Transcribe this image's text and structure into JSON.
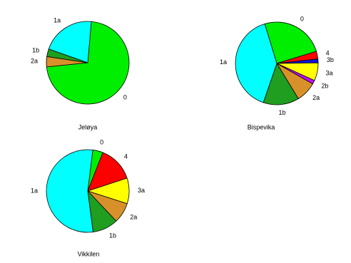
{
  "chart_data": [
    {
      "type": "pie",
      "title": "Jeløya",
      "categories": [
        "0",
        "2a",
        "1b",
        "1a"
      ],
      "values": [
        72,
        4,
        3,
        21
      ],
      "colors": [
        "#00ee00",
        "#d8912a",
        "#1f9e1f",
        "#00ffff"
      ]
    },
    {
      "type": "pie",
      "title": "Bispevika",
      "categories": [
        "0",
        "4",
        "3b",
        "3a",
        "2b",
        "2a",
        "1b",
        "1a"
      ],
      "values": [
        25,
        3,
        1.5,
        7,
        1.5,
        8,
        14,
        40
      ],
      "colors": [
        "#00ee00",
        "#ff0000",
        "#1010e0",
        "#ffff00",
        "#c010ff",
        "#d8912a",
        "#1f9e1f",
        "#00ffff"
      ]
    },
    {
      "type": "pie",
      "title": "Vikkilen",
      "categories": [
        "0",
        "4",
        "3a",
        "2a",
        "1b",
        "1a"
      ],
      "values": [
        4,
        14,
        10,
        8,
        10,
        54
      ],
      "colors": [
        "#00ee00",
        "#ff0000",
        "#ffff00",
        "#d8912a",
        "#1f9e1f",
        "#00ffff"
      ]
    }
  ]
}
